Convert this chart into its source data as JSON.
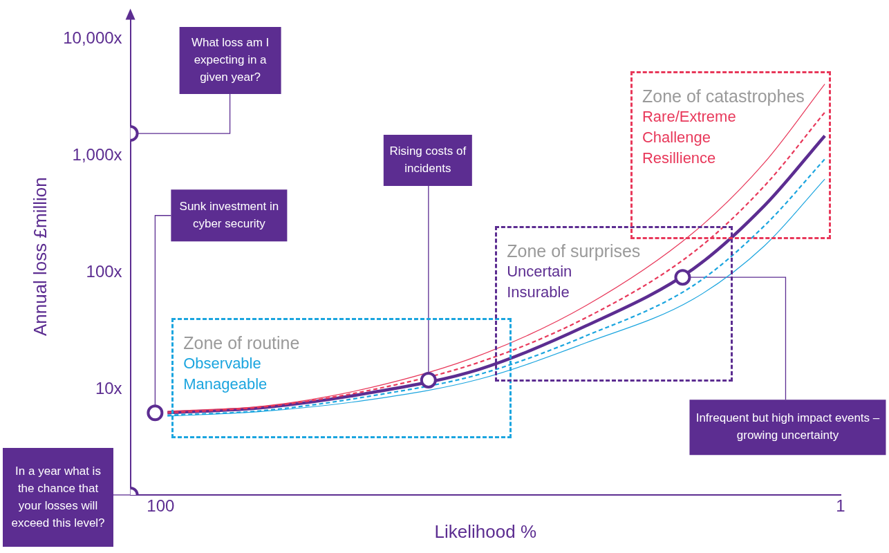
{
  "chart_data": {
    "type": "line",
    "xlabel": "Likelihood %",
    "ylabel": "Annual loss £million",
    "log": "y",
    "grid": false,
    "legend": false,
    "xlim": [
      104.4,
      1
    ],
    "xticks": [
      100,
      1
    ],
    "ylim": [
      1.25,
      15000
    ],
    "yticks": [
      {
        "value": 10,
        "label": "10x"
      },
      {
        "value": 100,
        "label": "100x"
      },
      {
        "value": 1000,
        "label": "1,000x"
      },
      {
        "value": 10000,
        "label": "10,000x"
      }
    ],
    "x": [
      99.0,
      84.9,
      69.3,
      53.7,
      38.1,
      22.5,
      12.1,
      3.3
    ],
    "series": [
      {
        "color": "#e8385a",
        "line_style": "solid",
        "values": [
          6.5,
          7.2,
          10.4,
          19.4,
          52,
          218,
          870,
          4100
        ]
      },
      {
        "color": "#e8385a",
        "line_style": "dashed",
        "values": [
          6.3,
          7.1,
          9.9,
          17,
          41,
          148,
          550,
          2350
        ]
      },
      {
        "color": "#5c2d91",
        "line_style": "solid",
        "values": [
          6.3,
          7.0,
          9.4,
          14.8,
          34.9,
          107,
          373,
          1480
        ]
      },
      {
        "color": "#1ba5df",
        "line_style": "dashed",
        "values": [
          6.0,
          6.6,
          8.8,
          13.4,
          28.7,
          77,
          251,
          935
        ]
      },
      {
        "color": "#1ba5df",
        "line_style": "solid",
        "values": [
          5.9,
          6.5,
          8.2,
          12.2,
          25,
          59,
          169,
          631
        ]
      },
      {
        "type": "scatter",
        "color": "#5c2d91",
        "marker": "circle",
        "x": [
          104.4,
          100.8,
          61.0,
          24.0,
          104.4
        ],
        "values": [
          1550,
          6.3,
          12,
          91,
          1.25
        ]
      }
    ],
    "annotations": [
      {
        "text": "What loss am I expecting in a given year?",
        "x": 104.4,
        "y": 1550
      },
      {
        "text": "Sunk investment in cyber security",
        "x": 100.8,
        "y": 6.3
      },
      {
        "text": "Rising costs of incidents",
        "x": 61.0,
        "y": 12
      },
      {
        "text": "Infrequent but high impact events – growing uncertainty",
        "x": 24.0,
        "y": 91
      },
      {
        "text": "In a year what is the chance that your losses will exceed this level?",
        "x": 104.4,
        "y": 1.25
      },
      "Zone of routine",
      "Observable",
      "Manageable",
      "Zone of surprises",
      "Uncertain",
      "Insurable",
      "Zone of catastrophes",
      "Rare/Extreme",
      "Challenge",
      "Resillience"
    ]
  }
}
